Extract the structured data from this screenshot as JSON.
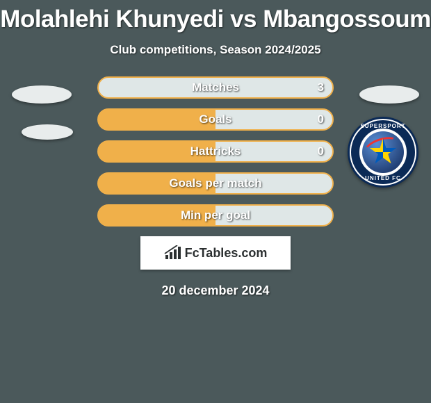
{
  "title": "Molahlehi Khunyedi vs Mbangossoum",
  "subtitle": "Club competitions, Season 2024/2025",
  "date": "20 december 2024",
  "fctables_label": "FcTables.com",
  "colors": {
    "background": "#4b595b",
    "bar_fill_left": "#f0b04a",
    "bar_fill_right": "#dfe7e7",
    "bar_border": "#f0b04a",
    "ellipse": "#e8ecec",
    "crest_ring": "#0b2a56"
  },
  "crest": {
    "top_text": "SUPERSPORT",
    "bottom_text": "UNITED FC"
  },
  "rows": [
    {
      "label": "Matches",
      "left_pct": 0,
      "right_value": "3",
      "show_value": true
    },
    {
      "label": "Goals",
      "left_pct": 50,
      "right_value": "0",
      "show_value": true
    },
    {
      "label": "Hattricks",
      "left_pct": 50,
      "right_value": "0",
      "show_value": true
    },
    {
      "label": "Goals per match",
      "left_pct": 50,
      "right_value": "",
      "show_value": false
    },
    {
      "label": "Min per goal",
      "left_pct": 50,
      "right_value": "",
      "show_value": false
    }
  ]
}
